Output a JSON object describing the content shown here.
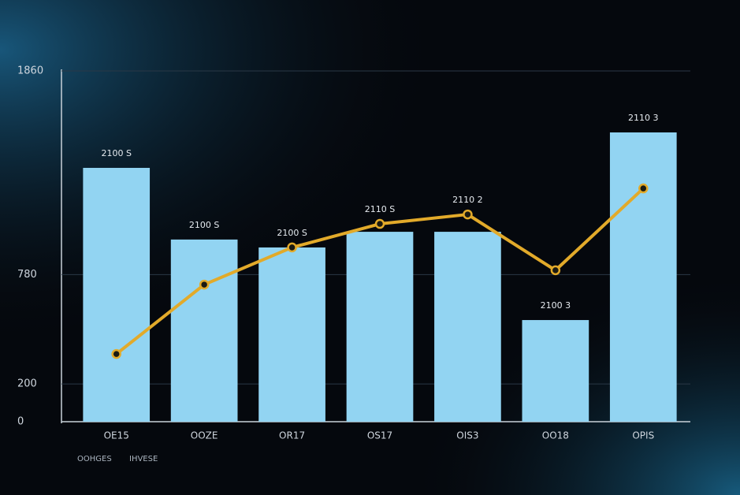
{
  "chart_data": {
    "type": "bar-line",
    "categories": [
      "OE15",
      "OOZE",
      "OR17",
      "OS17",
      "OIS3",
      "OO18",
      "OPIS"
    ],
    "series": [
      {
        "name": "OOHGES",
        "type": "bar",
        "color": "#92d4f2",
        "values": [
          1346,
          966,
          924,
          1007,
          1007,
          539,
          1534
        ]
      },
      {
        "name": "IHVESE",
        "type": "line",
        "color": "#e2aa2a",
        "values": [
          359,
          727,
          924,
          1049,
          1099,
          803,
          1237
        ]
      }
    ],
    "annotations": [
      "2100 S",
      "2100 S",
      "2100 S",
      "2110 S",
      "2110 2",
      "2100 3",
      "2110 3"
    ],
    "ylim": [
      0,
      1860
    ],
    "yticks": [
      0,
      200,
      780,
      1860
    ],
    "grid": true
  }
}
